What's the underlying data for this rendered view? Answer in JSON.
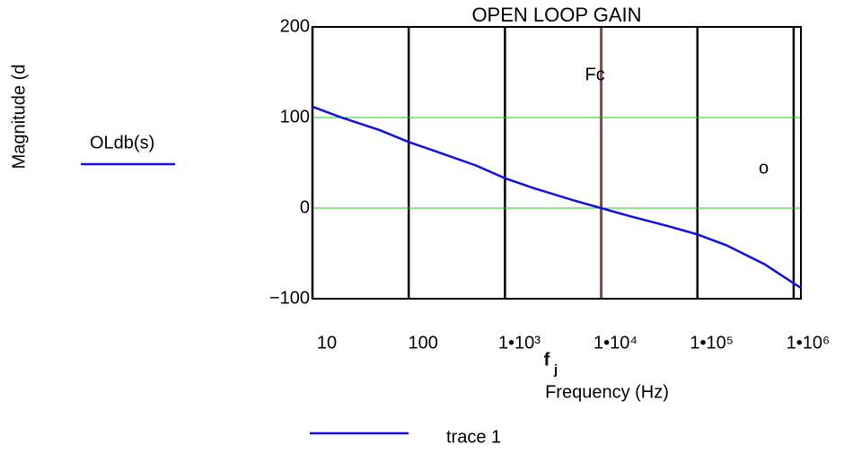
{
  "chart_data": {
    "type": "line",
    "title": "OPEN LOOP GAIN",
    "x_label": "Frequency (Hz)",
    "x_variable": "f",
    "x_variable_subscript": "j",
    "y_label": "Magnitude (d",
    "log_x": true,
    "grid_x": true,
    "x": [
      10,
      20,
      50,
      100,
      200,
      500,
      1000,
      2000,
      5000,
      10000,
      20000,
      50000,
      100000,
      200000,
      500000,
      1000000,
      1190000
    ],
    "series": [
      {
        "name": "OLdb(s)",
        "color": "#1010e0",
        "values": [
          112,
          100,
          86,
          73,
          62,
          47,
          33,
          22,
          9,
          0,
          -9,
          -20,
          -29,
          -41,
          -62,
          -83,
          -88
        ]
      }
    ],
    "xlim": [
      10,
      1190000
    ],
    "xticks": [
      10,
      100,
      {
        "value": 1000,
        "label": "1•10³"
      },
      {
        "value": 10000,
        "label": "1•10⁴"
      },
      {
        "value": 100000,
        "label": "1•10⁵"
      },
      {
        "value": 1000000,
        "label": "1•10⁶"
      }
    ],
    "ylim": [
      -100,
      200
    ],
    "yticks": [
      {
        "value": -100,
        "label": "−100"
      },
      0,
      100,
      200
    ],
    "y_markers": [
      {
        "value": 100,
        "color": "#22cc22"
      },
      {
        "value": 0,
        "color": "#22cc22"
      }
    ],
    "x_markers": [
      {
        "value": 10000,
        "color": "#e03030",
        "label": "Fc"
      }
    ],
    "annotation": "o",
    "trace_legend": "trace 1"
  }
}
